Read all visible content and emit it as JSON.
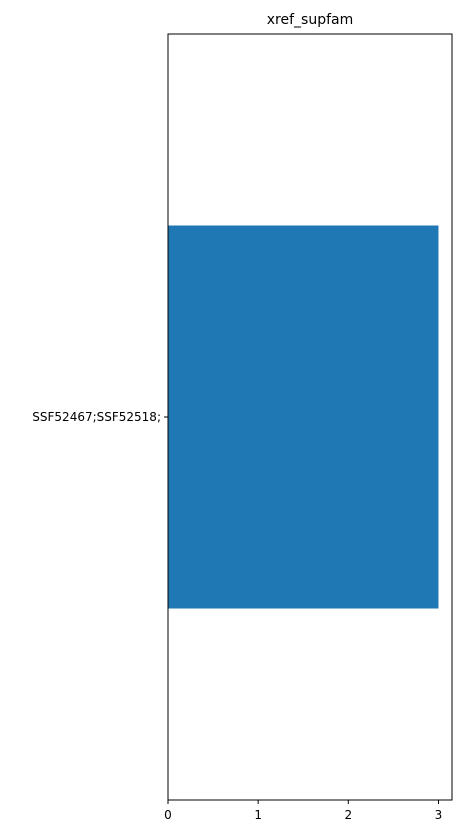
{
  "chart_data": {
    "type": "bar",
    "orientation": "horizontal",
    "title": "xref_supfam",
    "categories": [
      "SSF52467;SSF52518;"
    ],
    "values": [
      3
    ],
    "xlim": [
      0,
      3.15
    ],
    "xticks": [
      0,
      1,
      2,
      3
    ],
    "xlabel": "",
    "ylabel": "",
    "grid": false,
    "legend": false,
    "colors": {
      "bar": "#1f77b4",
      "axis": "#000000",
      "background": "#ffffff"
    }
  }
}
